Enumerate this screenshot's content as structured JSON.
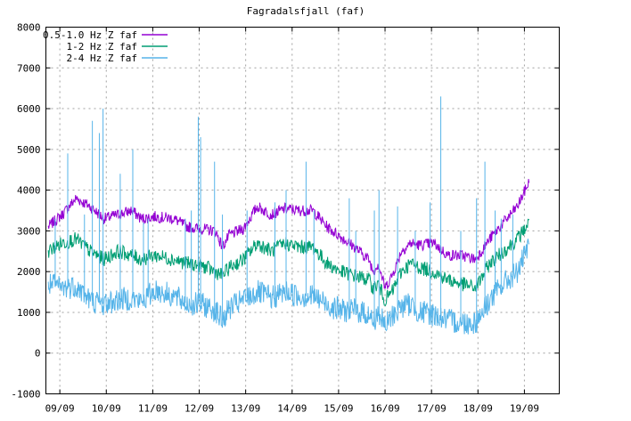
{
  "chart_data": {
    "type": "line",
    "title": "Fagradalsfjall (faf)",
    "xlabel": "",
    "ylabel": "",
    "ylim": [
      -1000,
      8000
    ],
    "yticks": [
      -1000,
      0,
      1000,
      2000,
      3000,
      4000,
      5000,
      6000,
      7000,
      8000
    ],
    "xlim": [
      -0.05,
      11.0
    ],
    "x_ticks": [
      {
        "label": "09/09",
        "x": 0.25
      },
      {
        "label": "10/09",
        "x": 1.25
      },
      {
        "label": "11/09",
        "x": 2.25
      },
      {
        "label": "12/09",
        "x": 3.25
      },
      {
        "label": "13/09",
        "x": 4.25
      },
      {
        "label": "14/09",
        "x": 5.25
      },
      {
        "label": "15/09",
        "x": 6.25
      },
      {
        "label": "16/09",
        "x": 7.25
      },
      {
        "label": "17/09",
        "x": 8.25
      },
      {
        "label": "18/09",
        "x": 9.25
      },
      {
        "label": "19/09",
        "x": 10.25
      }
    ],
    "grid": true,
    "legend_position": "top-left",
    "series": [
      {
        "name": "0.5-1.0 Hz Z faf",
        "color": "#9400d3",
        "x": [
          0,
          0.3,
          0.6,
          0.9,
          1.2,
          1.5,
          1.8,
          2.0,
          2.3,
          2.7,
          3.0,
          3.3,
          3.6,
          3.75,
          3.9,
          4.2,
          4.5,
          4.8,
          5.1,
          5.4,
          5.7,
          6.0,
          6.3,
          6.6,
          6.9,
          7.0,
          7.1,
          7.25,
          7.4,
          7.6,
          7.8,
          8.0,
          8.3,
          8.6,
          8.9,
          9.2,
          9.5,
          9.8,
          10.1,
          10.35
        ],
        "y": [
          3100,
          3400,
          3800,
          3600,
          3300,
          3400,
          3500,
          3300,
          3350,
          3300,
          3100,
          3050,
          3000,
          2600,
          2900,
          3050,
          3600,
          3400,
          3550,
          3500,
          3500,
          3100,
          2850,
          2600,
          2300,
          2000,
          2200,
          1600,
          1900,
          2500,
          2700,
          2650,
          2700,
          2400,
          2400,
          2300,
          2800,
          3200,
          3600,
          4200
        ]
      },
      {
        "name": "1-2 Hz Z faf",
        "color": "#009e73",
        "x": [
          0,
          0.3,
          0.6,
          0.9,
          1.2,
          1.5,
          1.8,
          2.0,
          2.3,
          2.7,
          3.0,
          3.3,
          3.6,
          3.75,
          3.9,
          4.2,
          4.5,
          4.8,
          5.1,
          5.4,
          5.7,
          6.0,
          6.3,
          6.6,
          6.9,
          7.0,
          7.1,
          7.25,
          7.4,
          7.6,
          7.8,
          8.0,
          8.3,
          8.6,
          8.9,
          9.2,
          9.5,
          9.8,
          10.1,
          10.35
        ],
        "y": [
          2500,
          2700,
          2800,
          2500,
          2300,
          2500,
          2400,
          2300,
          2400,
          2300,
          2200,
          2150,
          2000,
          1900,
          2100,
          2300,
          2700,
          2500,
          2700,
          2600,
          2600,
          2200,
          2000,
          1900,
          1800,
          1600,
          1700,
          1300,
          1500,
          2000,
          2200,
          2100,
          2000,
          1800,
          1700,
          1600,
          2200,
          2500,
          2800,
          3200
        ]
      },
      {
        "name": "2-4 Hz Z faf",
        "color": "#56b4e9",
        "x": [
          0,
          0.3,
          0.6,
          0.9,
          1.2,
          1.5,
          1.8,
          2.0,
          2.3,
          2.7,
          3.0,
          3.3,
          3.6,
          3.75,
          3.9,
          4.2,
          4.5,
          4.8,
          5.1,
          5.4,
          5.7,
          6.0,
          6.3,
          6.6,
          6.9,
          7.0,
          7.1,
          7.25,
          7.4,
          7.6,
          7.8,
          8.0,
          8.3,
          8.6,
          8.9,
          9.2,
          9.5,
          9.8,
          10.1,
          10.35
        ],
        "y": [
          1700,
          1600,
          1650,
          1300,
          1200,
          1300,
          1350,
          1250,
          1550,
          1400,
          1200,
          1200,
          1050,
          800,
          1100,
          1300,
          1500,
          1350,
          1500,
          1400,
          1400,
          1200,
          1050,
          1050,
          950,
          750,
          1000,
          650,
          900,
          1150,
          1200,
          1000,
          950,
          800,
          750,
          750,
          1300,
          1700,
          2000,
          2600
        ]
      }
    ],
    "spikes": [
      {
        "series": 2,
        "x": 0.15,
        "y": 3300
      },
      {
        "series": 2,
        "x": 0.42,
        "y": 4900
      },
      {
        "series": 2,
        "x": 0.78,
        "y": 3400
      },
      {
        "series": 2,
        "x": 0.95,
        "y": 5700
      },
      {
        "series": 2,
        "x": 1.1,
        "y": 5400
      },
      {
        "series": 2,
        "x": 1.18,
        "y": 6000
      },
      {
        "series": 2,
        "x": 1.55,
        "y": 4400
      },
      {
        "series": 2,
        "x": 1.82,
        "y": 5000
      },
      {
        "series": 2,
        "x": 2.05,
        "y": 3200
      },
      {
        "series": 2,
        "x": 2.15,
        "y": 3300
      },
      {
        "series": 2,
        "x": 2.95,
        "y": 3300
      },
      {
        "series": 2,
        "x": 3.08,
        "y": 3500
      },
      {
        "series": 2,
        "x": 3.23,
        "y": 5800
      },
      {
        "series": 2,
        "x": 3.28,
        "y": 5300
      },
      {
        "series": 2,
        "x": 3.58,
        "y": 4700
      },
      {
        "series": 2,
        "x": 3.75,
        "y": 3400
      },
      {
        "series": 2,
        "x": 4.28,
        "y": 3500
      },
      {
        "series": 2,
        "x": 4.88,
        "y": 3700
      },
      {
        "series": 2,
        "x": 5.12,
        "y": 4000
      },
      {
        "series": 2,
        "x": 5.55,
        "y": 4700
      },
      {
        "series": 2,
        "x": 5.72,
        "y": 3500
      },
      {
        "series": 2,
        "x": 6.48,
        "y": 3800
      },
      {
        "series": 2,
        "x": 6.62,
        "y": 3000
      },
      {
        "series": 2,
        "x": 7.02,
        "y": 3500
      },
      {
        "series": 2,
        "x": 7.12,
        "y": 4000
      },
      {
        "series": 2,
        "x": 7.52,
        "y": 3600
      },
      {
        "series": 2,
        "x": 7.9,
        "y": 3000
      },
      {
        "series": 2,
        "x": 8.22,
        "y": 3700
      },
      {
        "series": 2,
        "x": 8.45,
        "y": 6300
      },
      {
        "series": 2,
        "x": 8.88,
        "y": 3000
      },
      {
        "series": 2,
        "x": 9.22,
        "y": 3800
      },
      {
        "series": 2,
        "x": 9.4,
        "y": 4700
      },
      {
        "series": 2,
        "x": 9.62,
        "y": 3500
      },
      {
        "series": 2,
        "x": 9.75,
        "y": 3300
      },
      {
        "series": 2,
        "x": 10.0,
        "y": 3400
      }
    ]
  }
}
